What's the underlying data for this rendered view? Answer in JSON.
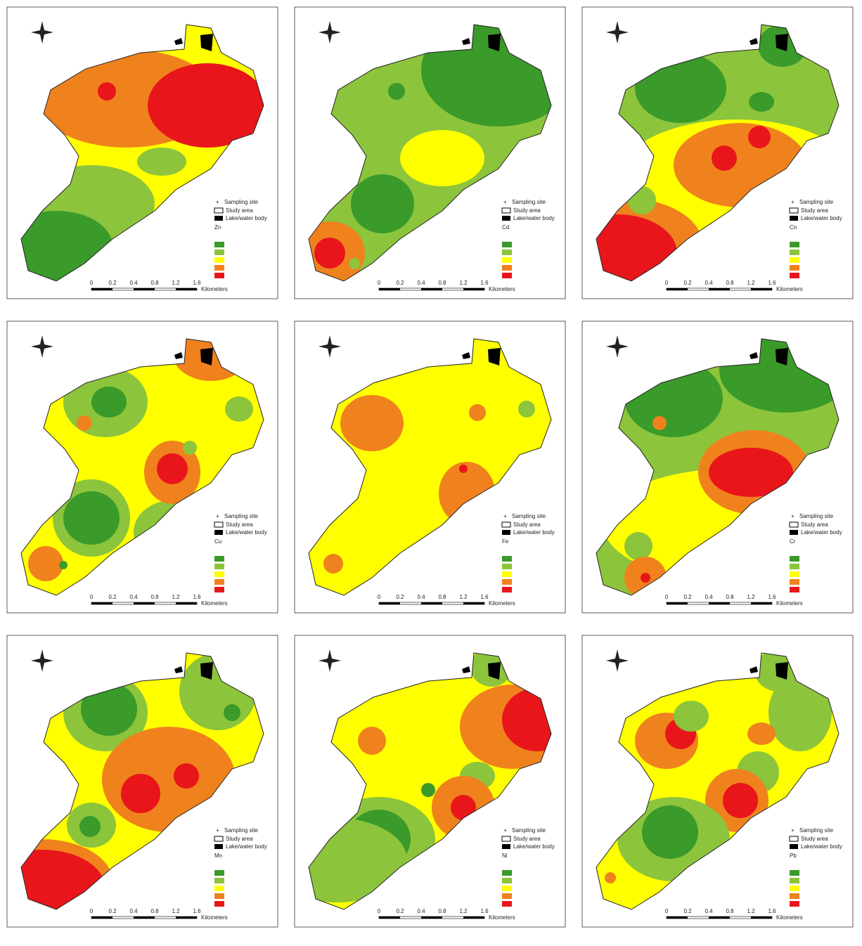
{
  "panels": [
    {
      "element": "Zn"
    },
    {
      "element": "Cd"
    },
    {
      "element": "Co"
    },
    {
      "element": "Cu"
    },
    {
      "element": "Fe"
    },
    {
      "element": "Cr"
    },
    {
      "element": "Mn"
    },
    {
      "element": "Ni"
    },
    {
      "element": "Pb"
    }
  ],
  "legend": {
    "sampling_site": "Sampling site",
    "study_area": "Study area",
    "water_body": "Lake/water body"
  },
  "scale_unit": "Kilometers",
  "scale_ticks": [
    "0",
    "0.2",
    "0.4",
    "0.8",
    "1.2",
    "1.6"
  ]
}
